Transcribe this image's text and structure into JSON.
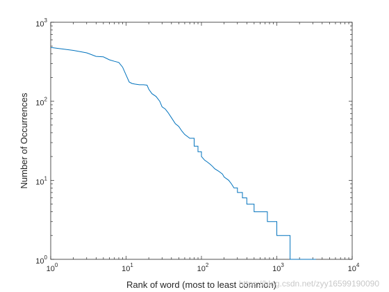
{
  "chart_data": {
    "type": "line",
    "title": "",
    "xlabel": "Rank of word (most to least common)",
    "ylabel": "Number of Occurrences",
    "xscale": "log",
    "yscale": "log",
    "xlim": [
      1,
      10000
    ],
    "ylim": [
      1,
      1000
    ],
    "grid": false,
    "legend": "none",
    "line_color": "#0072bd",
    "xticks": [
      {
        "base": "10",
        "exp": "0"
      },
      {
        "base": "10",
        "exp": "1"
      },
      {
        "base": "10",
        "exp": "2"
      },
      {
        "base": "10",
        "exp": "3"
      },
      {
        "base": "10",
        "exp": "4"
      }
    ],
    "yticks": [
      {
        "base": "10",
        "exp": "0"
      },
      {
        "base": "10",
        "exp": "1"
      },
      {
        "base": "10",
        "exp": "2"
      },
      {
        "base": "10",
        "exp": "3"
      }
    ],
    "series": [
      {
        "x": [
          1,
          2,
          3,
          4,
          5,
          6,
          7,
          8,
          9,
          10,
          11,
          12,
          13,
          15,
          17,
          19,
          20,
          22,
          25,
          28,
          30,
          33,
          36,
          40,
          45,
          50,
          55,
          60,
          70,
          80,
          90,
          100,
          110,
          120,
          130,
          140,
          150,
          170,
          190,
          200,
          230,
          250,
          270,
          300,
          330,
          350,
          400,
          450,
          500,
          520,
          560,
          650,
          750,
          850,
          1000,
          1300,
          1400,
          1500,
          2000,
          2500,
          3000,
          3300
        ],
        "y": [
          480,
          440,
          410,
          370,
          365,
          335,
          320,
          310,
          270,
          215,
          175,
          168,
          165,
          162,
          162,
          160,
          142,
          125,
          115,
          100,
          85,
          80,
          72,
          62,
          52,
          48,
          42,
          38,
          34,
          27,
          23,
          20,
          18,
          17,
          16,
          15,
          14,
          13,
          12,
          11,
          10,
          9,
          8,
          7,
          7,
          6,
          5,
          5,
          4,
          4,
          4,
          4,
          3,
          3,
          2,
          2,
          2,
          1,
          1,
          1,
          1,
          1
        ]
      }
    ]
  },
  "watermark": "https://blog.csdn.net/zyy16599190090"
}
